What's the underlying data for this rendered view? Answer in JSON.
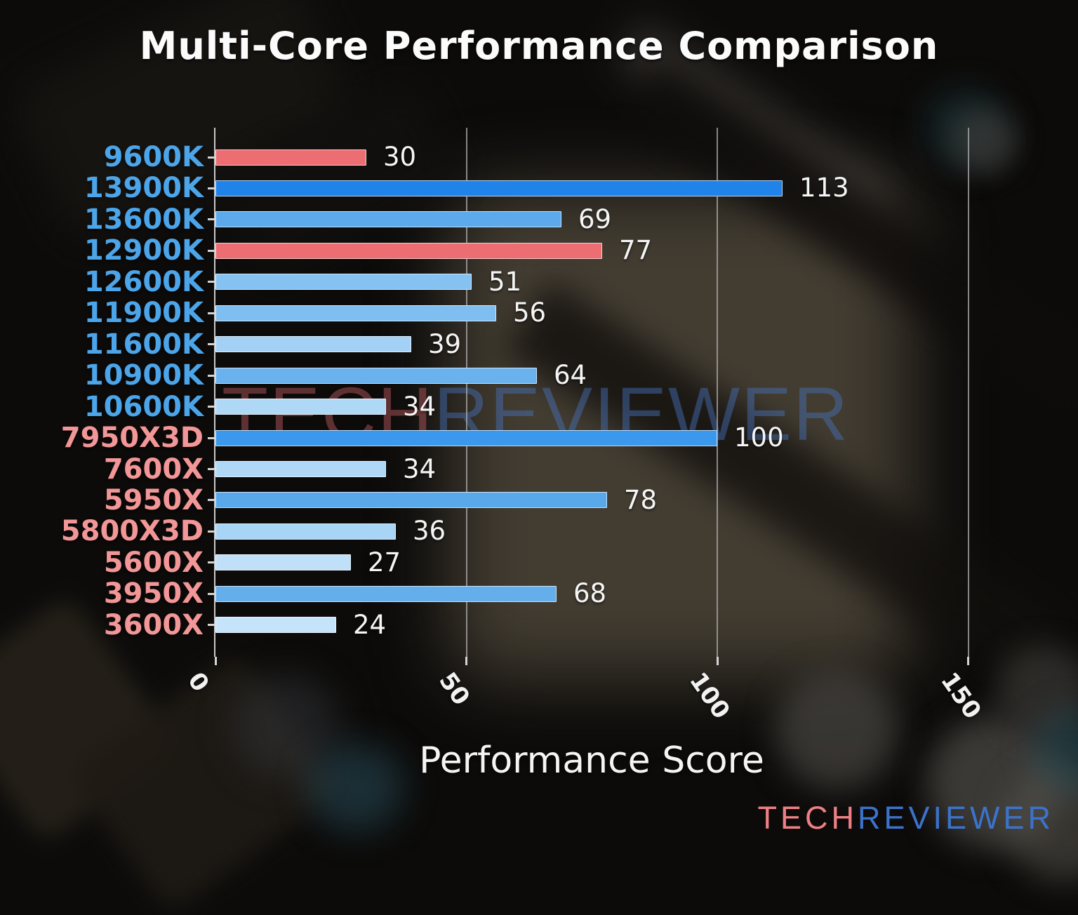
{
  "title": "Multi-Core Performance Comparison",
  "watermark": {
    "tech": "TECH",
    "reviewer": "REVIEWER"
  },
  "logo": {
    "tech": "TECH",
    "reviewer": "REVIEWER"
  },
  "colors": {
    "background": "#0c0b0a",
    "text": "#f5f5f5",
    "axis": "#c9c9c9",
    "grid": "#afafaf",
    "intel_label": "#4ca4e9",
    "amd_label": "#f29697",
    "highlight_bar": "#ec6e72",
    "logo_tech": "#ed8085",
    "logo_reviewer": "#3b73cb",
    "watermark_tech": "rgba(210,100,105,0.42)",
    "watermark_reviewer": "rgba(70,115,190,0.45)"
  },
  "chart_data": {
    "type": "bar",
    "orientation": "horizontal",
    "title": "Multi-Core Performance Comparison",
    "xlabel": "Performance Score",
    "ylabel": "",
    "xlim": [
      0,
      157
    ],
    "xticks": [
      "0",
      "50",
      "100",
      "150"
    ],
    "xtick_values": [
      0,
      50,
      100,
      150
    ],
    "grid": true,
    "legend_position": "none",
    "categories": [
      "9600K",
      "13900K",
      "13600K",
      "12900K",
      "12600K",
      "11900K",
      "11600K",
      "10900K",
      "10600K",
      "7950X3D",
      "7600X",
      "5950X",
      "5800X3D",
      "5600X",
      "3950X",
      "3600X"
    ],
    "values": [
      30,
      113,
      69,
      77,
      51,
      56,
      39,
      64,
      34,
      100,
      34,
      78,
      36,
      27,
      68,
      24
    ],
    "bar_colors": [
      "#ec6e72",
      "#1f83e9",
      "#5caaeb",
      "#ec6e72",
      "#85c1f1",
      "#7fbef0",
      "#a2d1f5",
      "#6ab2ed",
      "#aed8f6",
      "#3c98ec",
      "#aed8f6",
      "#58a8ea",
      "#a8d5f5",
      "#bfe0f8",
      "#64aeec",
      "#c5e3f9"
    ],
    "category_label_colors": [
      "#4ca4e9",
      "#4ca4e9",
      "#4ca4e9",
      "#4ca4e9",
      "#4ca4e9",
      "#4ca4e9",
      "#4ca4e9",
      "#4ca4e9",
      "#4ca4e9",
      "#f29697",
      "#f29697",
      "#f29697",
      "#f29697",
      "#f29697",
      "#f29697",
      "#f29697"
    ]
  }
}
